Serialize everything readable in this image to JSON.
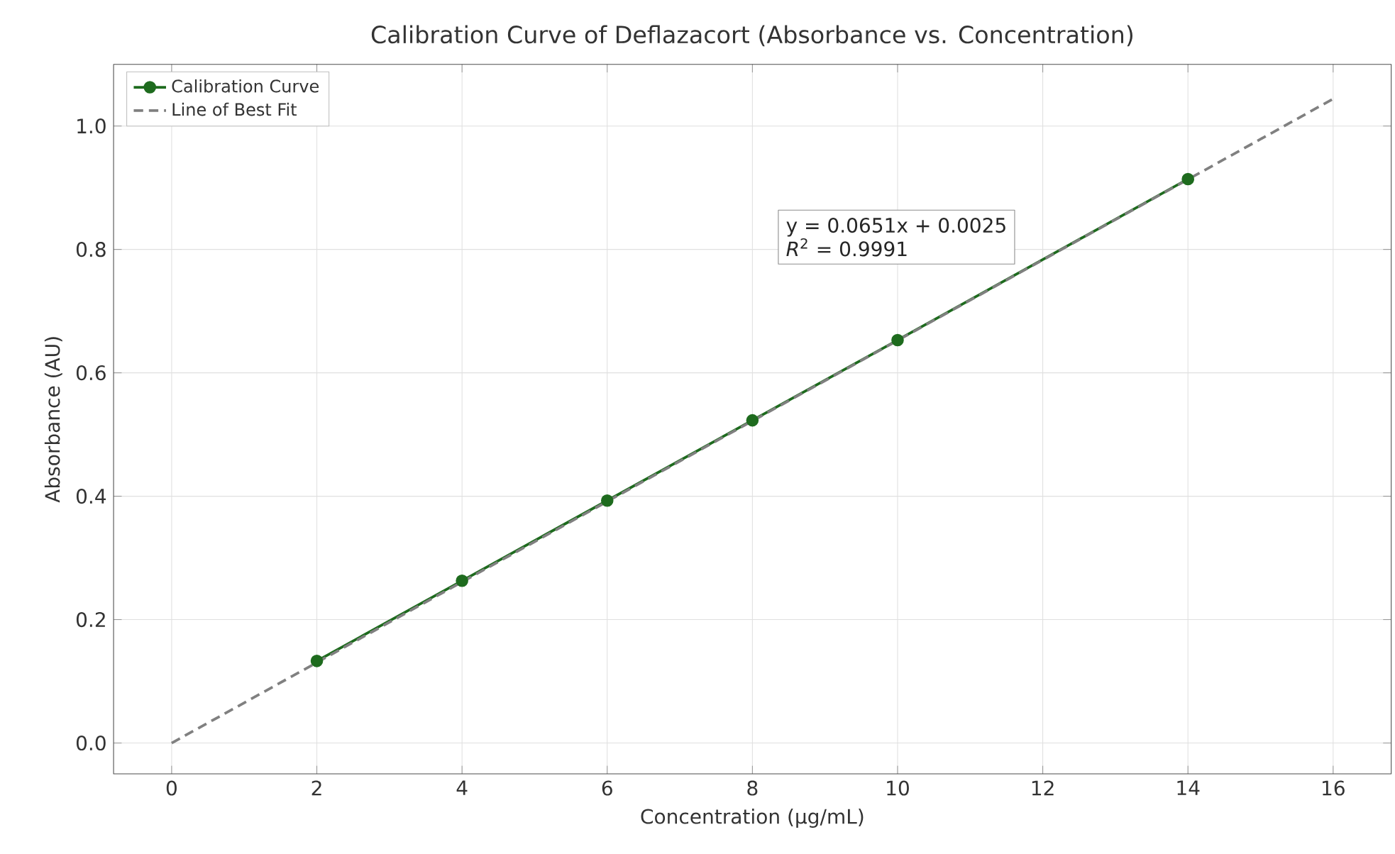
{
  "chart_data": {
    "type": "line",
    "title": "Calibration Curve of Deflazacort (Absorbance vs. Concentration)",
    "xlabel": "Concentration (µg/mL)",
    "ylabel": "Absorbance (AU)",
    "x": [
      2,
      4,
      6,
      8,
      10,
      14
    ],
    "series": [
      {
        "name": "Calibration Curve",
        "color": "#1e6b1e",
        "values": [
          0.133,
          0.263,
          0.393,
          0.523,
          0.653,
          0.914
        ],
        "marker": "circle",
        "line_style": "solid"
      },
      {
        "name": "Line of Best Fit",
        "type": "line",
        "color": "#808080",
        "x": [
          0,
          16
        ],
        "values": [
          0,
          1.044
        ],
        "marker": "none",
        "line_style": "dashed"
      }
    ],
    "annotations": [
      "y = 0.0651x + 0.0025",
      "*R*$^{2}$ = 0.9991"
    ],
    "xlim": [
      -0.8,
      16.8
    ],
    "ylim": [
      -0.05,
      1.1
    ],
    "xticks": [
      0,
      2,
      4,
      6,
      8,
      10,
      12,
      14,
      16
    ],
    "yticks": [
      {
        "value": 0,
        "label": "0.0"
      },
      {
        "value": 0.2,
        "label": "0.2"
      },
      {
        "value": 0.4,
        "label": "0.4"
      },
      {
        "value": 0.6,
        "label": "0.6"
      },
      {
        "value": 0.8,
        "label": "0.8"
      },
      {
        "value": 1.0,
        "label": "1.0"
      }
    ],
    "grid": true,
    "legend": "top left"
  }
}
